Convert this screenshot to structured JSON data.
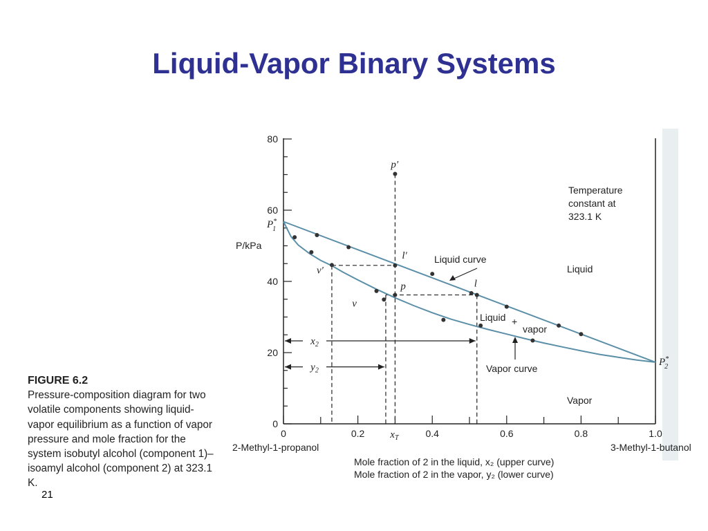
{
  "slide": {
    "title": "Liquid-Vapor Binary Systems",
    "number": "21"
  },
  "caption": {
    "figure_label": "FIGURE 6.2",
    "text": "Pressure-composition diagram for two volatile components showing liquid-vapor equilibrium as a function of vapor pressure and mole fraction for the system isobutyl alcohol (component 1)–isoamyl alcohol (component 2) at 323.1 K."
  },
  "chart_data": {
    "type": "line",
    "ylabel": "P/kPa",
    "xlabel_lines": [
      "Mole fraction of 2 in the liquid, x₂ (upper curve)",
      "Mole fraction of 2 in the vapor, y₂ (lower curve)"
    ],
    "x_left_label": "2-Methyl-1-propanol",
    "x_right_label": "3-Methyl-1-butanol",
    "xlim": [
      0,
      1.0
    ],
    "ylim": [
      0,
      80
    ],
    "x_ticks": [
      "0",
      "0.2",
      "0.4",
      "0.6",
      "0.8",
      "1.0"
    ],
    "y_ticks": [
      "0",
      "20",
      "40",
      "60",
      "80"
    ],
    "x_T_label": "x_T",
    "x_T": 0.3,
    "P1_star": 56.8,
    "P2_star": 17.3,
    "series": [
      {
        "name": "Liquid curve",
        "color": "#5b8fa8",
        "line": [
          [
            0,
            56.8
          ],
          [
            1.0,
            17.3
          ]
        ],
        "points": [
          [
            0.09,
            53.0
          ],
          [
            0.175,
            49.6
          ],
          [
            0.4,
            42.1
          ],
          [
            0.505,
            36.7
          ],
          [
            0.6,
            32.9
          ],
          [
            0.74,
            27.6
          ],
          [
            0.8,
            25.2
          ]
        ]
      },
      {
        "name": "Vapor curve",
        "color": "#5b8fa8",
        "line": [
          [
            0,
            56.8
          ],
          [
            0.02,
            52.6
          ],
          [
            0.04,
            50.2
          ],
          [
            0.07,
            47.8
          ],
          [
            0.1,
            45.9
          ],
          [
            0.13,
            44.4
          ],
          [
            0.16,
            42.6
          ],
          [
            0.2,
            40.4
          ],
          [
            0.25,
            37.8
          ],
          [
            0.3,
            35.4
          ],
          [
            0.35,
            33.2
          ],
          [
            0.4,
            31.2
          ],
          [
            0.45,
            29.4
          ],
          [
            0.5,
            27.9
          ],
          [
            0.55,
            26.5
          ],
          [
            0.6,
            25.2
          ],
          [
            0.65,
            23.9
          ],
          [
            0.7,
            22.7
          ],
          [
            0.75,
            21.6
          ],
          [
            0.8,
            20.5
          ],
          [
            0.85,
            19.5
          ],
          [
            0.9,
            18.7
          ],
          [
            0.95,
            17.9
          ],
          [
            1.0,
            17.3
          ]
        ],
        "points": [
          [
            0.03,
            52.4
          ],
          [
            0.075,
            48.2
          ],
          [
            0.25,
            37.3
          ],
          [
            0.43,
            29.2
          ],
          [
            0.53,
            27.6
          ],
          [
            0.67,
            23.4
          ]
        ]
      }
    ],
    "marked_points": [
      {
        "label": "p′",
        "x": 0.3,
        "y": 70.2
      },
      {
        "label": "l′",
        "x": 0.3,
        "y": 44.5
      },
      {
        "label": "v′",
        "x": 0.13,
        "y": 44.6
      },
      {
        "label": "p",
        "x": 0.3,
        "y": 36.2
      },
      {
        "label": "l",
        "x": 0.52,
        "y": 36.2
      },
      {
        "label": "v",
        "x": 0.27,
        "y": 34.9
      }
    ],
    "arrows": [
      {
        "label": "x₂",
        "from": 0,
        "to": 0.52,
        "y": 23.3
      },
      {
        "label": "y₂",
        "from": 0,
        "to": 0.275,
        "y": 16.0
      }
    ],
    "annotations": {
      "temperature": [
        "Temperature",
        "constant at",
        "323.1 K"
      ],
      "liquid_curve": "Liquid curve",
      "vapor_curve": "Vapor curve",
      "liquid_region": "Liquid",
      "vapor_region": "Vapor",
      "two_phase": [
        "Liquid",
        "+",
        "vapor"
      ],
      "P1": "P₁*",
      "P2": "P₂*"
    }
  }
}
